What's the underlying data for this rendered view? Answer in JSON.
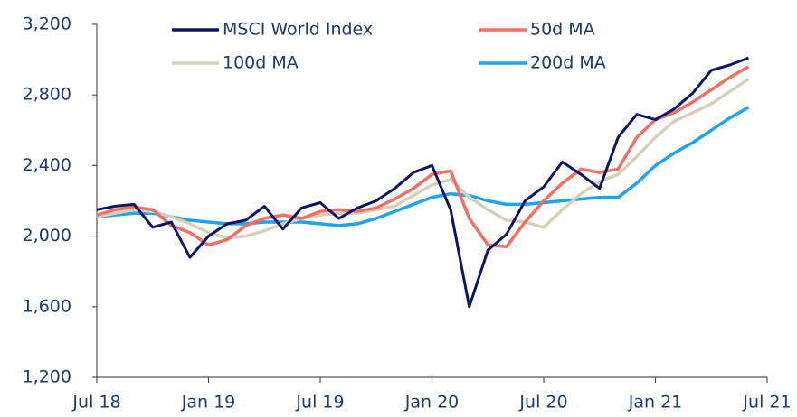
{
  "chart_data": {
    "type": "line",
    "x": [
      "2018-07",
      "2018-08",
      "2018-09",
      "2018-10",
      "2018-11",
      "2018-12",
      "2019-01",
      "2019-02",
      "2019-03",
      "2019-04",
      "2019-05",
      "2019-06",
      "2019-07",
      "2019-08",
      "2019-09",
      "2019-10",
      "2019-11",
      "2019-12",
      "2020-01",
      "2020-02",
      "2020-03",
      "2020-04",
      "2020-05",
      "2020-06",
      "2020-07",
      "2020-08",
      "2020-09",
      "2020-10",
      "2020-11",
      "2020-12",
      "2021-01",
      "2021-02",
      "2021-03",
      "2021-04",
      "2021-05",
      "2021-06"
    ],
    "series": [
      {
        "name": "MSCI World Index",
        "color": "#0d1566",
        "values": [
          2150,
          2170,
          2180,
          2050,
          2080,
          1880,
          2000,
          2070,
          2090,
          2170,
          2040,
          2160,
          2190,
          2100,
          2160,
          2200,
          2270,
          2360,
          2400,
          2150,
          1600,
          1920,
          2010,
          2200,
          2280,
          2420,
          2350,
          2270,
          2560,
          2690,
          2660,
          2720,
          2810,
          2940,
          2970,
          3010
        ]
      },
      {
        "name": "50d MA",
        "color": "#f07063",
        "values": [
          2120,
          2150,
          2165,
          2150,
          2060,
          2020,
          1950,
          1980,
          2060,
          2100,
          2120,
          2100,
          2140,
          2150,
          2140,
          2160,
          2210,
          2270,
          2350,
          2370,
          2100,
          1950,
          1940,
          2080,
          2200,
          2300,
          2380,
          2360,
          2380,
          2560,
          2660,
          2700,
          2760,
          2830,
          2900,
          2960
        ]
      },
      {
        "name": "100d MA",
        "color": "#d6d0bb",
        "values": [
          2110,
          2130,
          2150,
          2140,
          2110,
          2070,
          2020,
          1990,
          2000,
          2030,
          2070,
          2100,
          2120,
          2130,
          2130,
          2150,
          2170,
          2230,
          2290,
          2320,
          2220,
          2150,
          2090,
          2080,
          2050,
          2150,
          2240,
          2310,
          2350,
          2450,
          2560,
          2650,
          2700,
          2750,
          2820,
          2890
        ]
      },
      {
        "name": "200d MA",
        "color": "#1fa3ec",
        "values": [
          2110,
          2120,
          2130,
          2130,
          2110,
          2090,
          2080,
          2070,
          2070,
          2080,
          2080,
          2080,
          2070,
          2060,
          2070,
          2100,
          2140,
          2180,
          2220,
          2240,
          2230,
          2200,
          2180,
          2180,
          2190,
          2200,
          2210,
          2220,
          2220,
          2300,
          2400,
          2470,
          2530,
          2600,
          2670,
          2730
        ]
      }
    ],
    "xlim": [
      "2018-07",
      "2021-07"
    ],
    "xticks": [
      {
        "value": "2018-07",
        "label": "Jul 18"
      },
      {
        "value": "2019-01",
        "label": "Jan 19"
      },
      {
        "value": "2019-07",
        "label": "Jul 19"
      },
      {
        "value": "2020-01",
        "label": "Jan 20"
      },
      {
        "value": "2020-07",
        "label": "Jul 20"
      },
      {
        "value": "2021-01",
        "label": "Jan 21"
      },
      {
        "value": "2021-07",
        "label": "Jul 21"
      }
    ],
    "ylim": [
      1200,
      3200
    ],
    "yticks": [
      {
        "value": 1200,
        "label": "1,200"
      },
      {
        "value": 1600,
        "label": "1,600"
      },
      {
        "value": 2000,
        "label": "2,000"
      },
      {
        "value": 2400,
        "label": "2,400"
      },
      {
        "value": 2800,
        "label": "2,800"
      },
      {
        "value": 3200,
        "label": "3,200"
      }
    ],
    "grid": false
  }
}
